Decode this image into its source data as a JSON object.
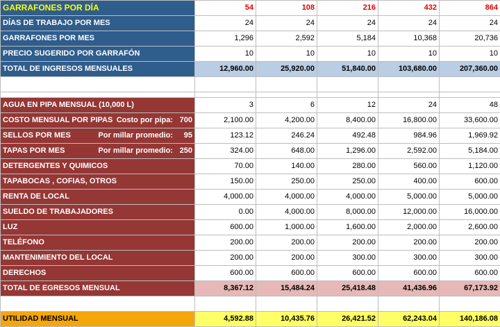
{
  "income": {
    "header": {
      "label": "GARRAFONES POR DÍA",
      "values": [
        "54",
        "108",
        "216",
        "432",
        "864"
      ]
    },
    "rows": [
      {
        "label": "DÍAS DE TRABAJO POR MES",
        "values": [
          "24",
          "24",
          "24",
          "24",
          "24"
        ]
      },
      {
        "label": "GARRAFONES POR MES",
        "values": [
          "1,296",
          "2,592",
          "5,184",
          "10,368",
          "20,736"
        ]
      },
      {
        "label": "PRECIO SUGERIDO POR GARRAFÓN",
        "values": [
          "10",
          "10",
          "10",
          "10",
          "10"
        ]
      }
    ],
    "total": {
      "label": "TOTAL DE INGRESOS MENSUALES",
      "values": [
        "12,960.00",
        "25,920.00",
        "51,840.00",
        "103,680.00",
        "207,360.00"
      ]
    }
  },
  "expenses": {
    "rows": [
      {
        "label": "AGUA EN PIPA MENSUAL (10,000 L)",
        "values": [
          "3",
          "6",
          "12",
          "24",
          "48"
        ]
      },
      {
        "label": "COSTO MENSUAL POR PIPAS",
        "sub_label": "Costo por pipa:",
        "sub_value": "700",
        "values": [
          "2,100.00",
          "4,200.00",
          "8,400.00",
          "16,800.00",
          "33,600.00"
        ]
      },
      {
        "label": "SELLOS POR MES",
        "sub_label": "Por millar promedio:",
        "sub_value": "95",
        "values": [
          "123.12",
          "246.24",
          "492.48",
          "984.96",
          "1,969.92"
        ]
      },
      {
        "label": "TAPAS POR MES",
        "sub_label": "Por millar promedio:",
        "sub_value": "250",
        "values": [
          "324.00",
          "648.00",
          "1,296.00",
          "2,592.00",
          "5,184.00"
        ]
      },
      {
        "label": "DETERGENTES Y QUIMICOS",
        "values": [
          "70.00",
          "140.00",
          "280.00",
          "560.00",
          "1,120.00"
        ]
      },
      {
        "label": "TAPABOCAS , COFIAS, OTROS",
        "values": [
          "150.00",
          "250.00",
          "250.00",
          "400.00",
          "600.00"
        ]
      },
      {
        "label": "RENTA DE LOCAL",
        "values": [
          "4,000.00",
          "4,000.00",
          "4,000.00",
          "5,000.00",
          "5,000.00"
        ]
      },
      {
        "label": "SUELDO DE TRABAJADORES",
        "values": [
          "0.00",
          "4,000.00",
          "8,000.00",
          "12,000.00",
          "16,000.00"
        ]
      },
      {
        "label": "LUZ",
        "values": [
          "600.00",
          "1,000.00",
          "1,600.00",
          "2,000.00",
          "2,600.00"
        ]
      },
      {
        "label": "TELÉFONO",
        "values": [
          "200.00",
          "200.00",
          "200.00",
          "200.00",
          "200.00"
        ]
      },
      {
        "label": "MANTENIMIENTO DEL LOCAL",
        "values": [
          "200.00",
          "200.00",
          "300.00",
          "300.00",
          "300.00"
        ]
      },
      {
        "label": "DERECHOS",
        "values": [
          "600.00",
          "600.00",
          "600.00",
          "600.00",
          "600.00"
        ]
      }
    ],
    "total": {
      "label": "TOTAL DE EGRESOS MENSUAL",
      "values": [
        "8,367.12",
        "15,484.24",
        "25,418.48",
        "41,436.96",
        "67,173.92"
      ]
    }
  },
  "profit": {
    "label": "UTILIDAD MENSUAL",
    "values": [
      "4,592.88",
      "10,435.76",
      "26,421.52",
      "62,243.04",
      "140,186.08"
    ]
  },
  "colors": {
    "income_label_bg": "#2f5d8c",
    "income_total_bg": "#b9cde4",
    "expense_label_bg": "#953735",
    "expense_total_bg": "#e6b8b7",
    "profit_label_bg": "#f5a60a",
    "profit_total_bg": "#ffff66",
    "header_value_text": "#e10000",
    "header_label_text": "#ffff00"
  }
}
